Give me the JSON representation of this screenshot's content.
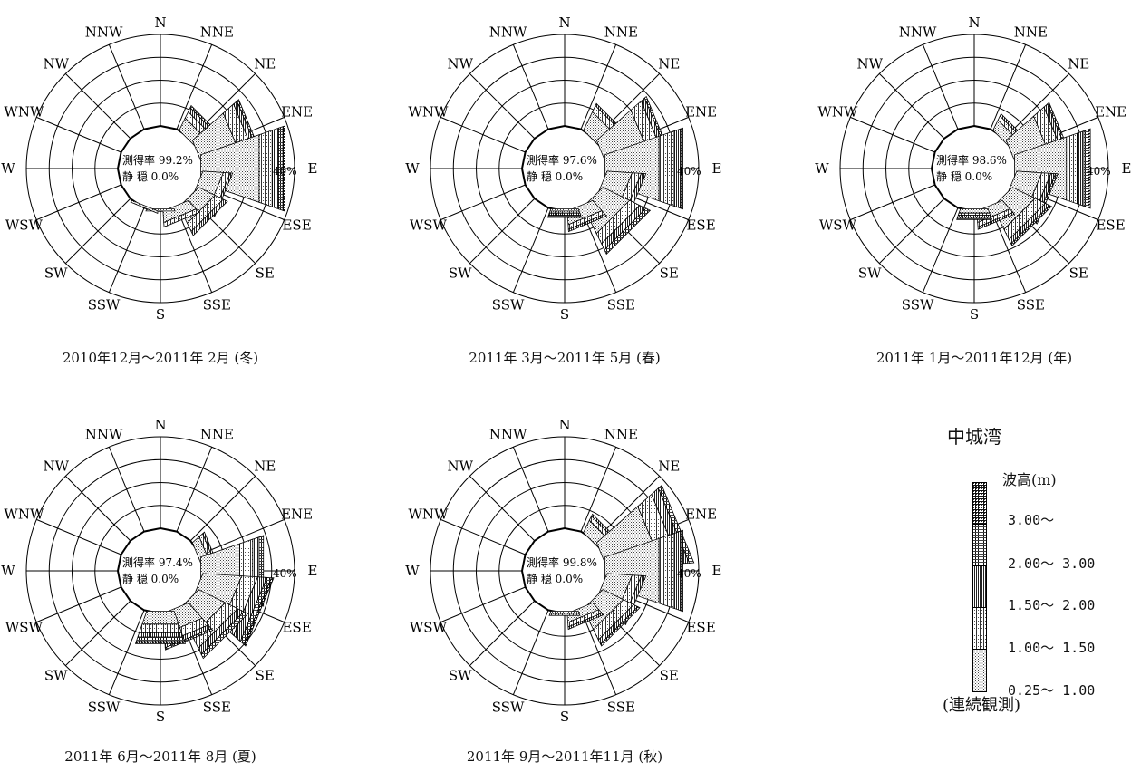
{
  "chart_data": {
    "type": "wind-rose",
    "directions": [
      "N",
      "NNE",
      "NE",
      "ENE",
      "E",
      "ESE",
      "SE",
      "SSE",
      "S",
      "SSW",
      "SW",
      "WSW",
      "W",
      "WNW",
      "NW",
      "NNW"
    ],
    "ring_values": [
      10,
      20,
      30,
      40
    ],
    "scale_label": "40%",
    "stack_order_inner_to_outer": [
      "0.25～ 1.00",
      "1.00～ 1.50",
      "1.50～ 2.00",
      "2.00～ 3.00",
      "3.00～"
    ],
    "panels": [
      {
        "caption": "2010年12月～2011年 2月 (冬)",
        "measure_label": "測得率",
        "measure_value": "99.2%",
        "calm_label": "静 穏",
        "calm_value": "0.0%",
        "sectors": [
          {
            "dir": "NE",
            "segments": [
              6,
              3,
              2,
              1
            ]
          },
          {
            "dir": "ENE",
            "segments": [
              18,
              6,
              2,
              1
            ]
          },
          {
            "dir": "E",
            "segments": [
              27,
              6,
              3,
              2,
              1
            ]
          },
          {
            "dir": "ESE",
            "segments": [
              9,
              3,
              1
            ]
          },
          {
            "dir": "SE",
            "segments": [
              8,
              4,
              2
            ]
          },
          {
            "dir": "SSE",
            "segments": [
              5,
              2
            ]
          },
          {
            "dir": "S",
            "segments": [
              1
            ]
          },
          {
            "dir": "SSW",
            "segments": [
              1
            ]
          }
        ]
      },
      {
        "caption": "2011年 3月～2011年 5月 (春)",
        "measure_label": "測得率",
        "measure_value": "97.6%",
        "calm_label": "静 穏",
        "calm_value": "0.0%",
        "sectors": [
          {
            "dir": "NE",
            "segments": [
              9,
              3,
              1
            ]
          },
          {
            "dir": "ENE",
            "segments": [
              20,
              6,
              2,
              1
            ]
          },
          {
            "dir": "E",
            "segments": [
              25,
              7,
              3,
              1
            ]
          },
          {
            "dir": "ESE",
            "segments": [
              11,
              4,
              2
            ]
          },
          {
            "dir": "SE",
            "segments": [
              13,
              5,
              3,
              2
            ]
          },
          {
            "dir": "SSE",
            "segments": [
              6,
              2,
              1
            ]
          },
          {
            "dir": "S",
            "segments": [
              1,
              1,
              1,
              1
            ]
          }
        ]
      },
      {
        "caption": "2011年 1月～2011年12月 (年)",
        "measure_label": "測得率",
        "measure_value": "98.6%",
        "calm_label": "静 穏",
        "calm_value": "0.0%",
        "sectors": [
          {
            "dir": "NE",
            "segments": [
              5,
              2,
              1
            ]
          },
          {
            "dir": "ENE",
            "segments": [
              16,
              6,
              2,
              1
            ]
          },
          {
            "dir": "E",
            "segments": [
              24,
              5,
              3,
              2,
              1
            ]
          },
          {
            "dir": "ESE",
            "segments": [
              11,
              4,
              2,
              1
            ]
          },
          {
            "dir": "SE",
            "segments": [
              11,
              5,
              2,
              1
            ]
          },
          {
            "dir": "SSE",
            "segments": [
              5,
              2,
              1
            ]
          },
          {
            "dir": "S",
            "segments": [
              2,
              1,
              1,
              1
            ]
          }
        ]
      },
      {
        "caption": "2011年 6月～2011年 8月 (夏)",
        "measure_label": "測得率",
        "measure_value": "97.4%",
        "calm_label": "静 穏",
        "calm_value": "0.0%",
        "sectors": [
          {
            "dir": "ENE",
            "segments": [
              4,
              2,
              1
            ]
          },
          {
            "dir": "E",
            "segments": [
              18,
              6,
              3,
              2
            ]
          },
          {
            "dir": "ESE",
            "segments": [
              17,
              7,
              4,
              2,
              1
            ]
          },
          {
            "dir": "SE",
            "segments": [
              13,
              6,
              3,
              2
            ]
          },
          {
            "dir": "SSE",
            "segments": [
              9,
              4,
              2,
              1
            ]
          },
          {
            "dir": "S",
            "segments": [
              6,
              4,
              2,
              2,
              1
            ]
          }
        ]
      },
      {
        "caption": "2011年 9月～2011年11月 (秋)",
        "measure_label": "測得率",
        "measure_value": "99.8%",
        "calm_label": "静 穏",
        "calm_value": "0.0%",
        "sectors": [
          {
            "dir": "NE",
            "segments": [
              6,
              2,
              1
            ]
          },
          {
            "dir": "ENE",
            "segments": [
              24,
              8,
              4,
              2
            ]
          },
          {
            "dir": "E",
            "segments": [
              25,
              7,
              3,
              1
            ]
          },
          {
            "dir": "ESE",
            "segments": [
              11,
              4,
              2
            ]
          },
          {
            "dir": "SE",
            "segments": [
              10,
              5,
              2,
              1
            ]
          },
          {
            "dir": "SSE",
            "segments": [
              4,
              2,
              1
            ]
          },
          {
            "dir": "S",
            "segments": [
              1,
              1
            ]
          }
        ]
      }
    ]
  },
  "legend": {
    "title": "中城湾",
    "unit_label": "波高(m)",
    "classes": [
      "3.00～",
      "2.00～ 3.00",
      "1.50～ 2.00",
      "1.00～ 1.50",
      "0.25～ 1.00"
    ],
    "note": "(連続観測)"
  }
}
